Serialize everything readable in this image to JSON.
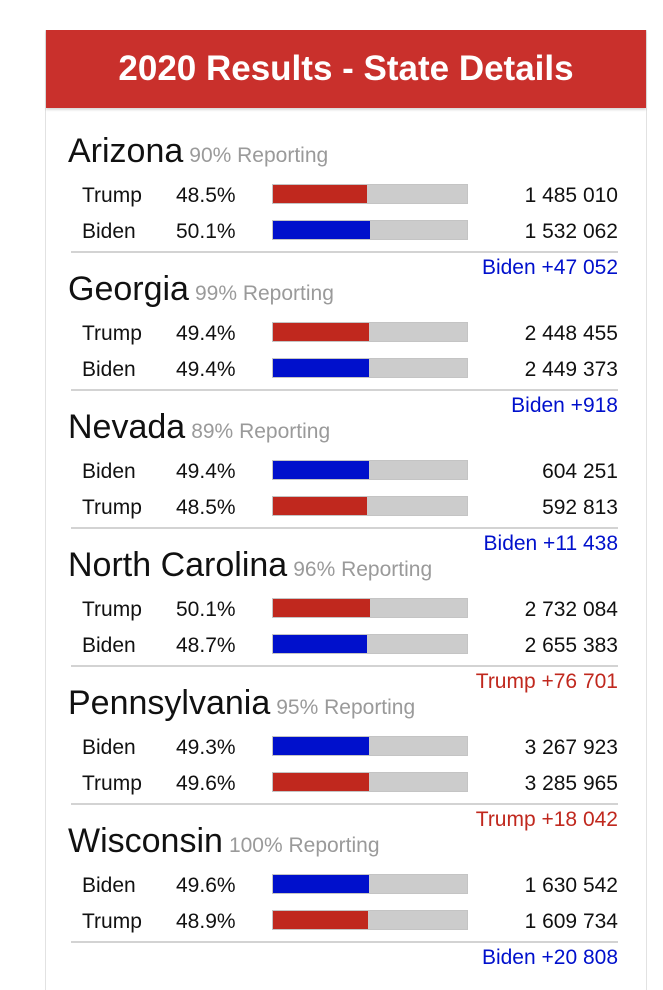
{
  "header": {
    "title": "2020 Results - State Details"
  },
  "colors": {
    "header_bg": "#c9302c",
    "trump": "#c0281e",
    "biden": "#0010cc",
    "track": "#cccccc"
  },
  "states": [
    {
      "name": "Arizona",
      "reporting": "90% Reporting",
      "rows": [
        {
          "cand": "Trump",
          "party": "trump",
          "pct": "48.5%",
          "share": 48.5,
          "votes": "1 485 010"
        },
        {
          "cand": "Biden",
          "party": "biden",
          "pct": "50.1%",
          "share": 50.1,
          "votes": "1 532 062"
        }
      ],
      "margin": "Biden +47 052",
      "margin_party": "biden"
    },
    {
      "name": "Georgia",
      "reporting": "99% Reporting",
      "rows": [
        {
          "cand": "Trump",
          "party": "trump",
          "pct": "49.4%",
          "share": 49.4,
          "votes": "2 448 455"
        },
        {
          "cand": "Biden",
          "party": "biden",
          "pct": "49.4%",
          "share": 49.4,
          "votes": "2 449 373"
        }
      ],
      "margin": "Biden +918",
      "margin_party": "biden"
    },
    {
      "name": "Nevada",
      "reporting": "89% Reporting",
      "rows": [
        {
          "cand": "Biden",
          "party": "biden",
          "pct": "49.4%",
          "share": 49.4,
          "votes": "604 251"
        },
        {
          "cand": "Trump",
          "party": "trump",
          "pct": "48.5%",
          "share": 48.5,
          "votes": "592 813"
        }
      ],
      "margin": "Biden +11 438",
      "margin_party": "biden"
    },
    {
      "name": "North Carolina",
      "reporting": "96% Reporting",
      "rows": [
        {
          "cand": "Trump",
          "party": "trump",
          "pct": "50.1%",
          "share": 50.1,
          "votes": "2 732 084"
        },
        {
          "cand": "Biden",
          "party": "biden",
          "pct": "48.7%",
          "share": 48.7,
          "votes": "2 655 383"
        }
      ],
      "margin": "Trump +76 701",
      "margin_party": "trump"
    },
    {
      "name": "Pennsylvania",
      "reporting": "95% Reporting",
      "rows": [
        {
          "cand": "Biden",
          "party": "biden",
          "pct": "49.3%",
          "share": 49.3,
          "votes": "3 267 923"
        },
        {
          "cand": "Trump",
          "party": "trump",
          "pct": "49.6%",
          "share": 49.6,
          "votes": "3 285 965"
        }
      ],
      "margin": "Trump +18 042",
      "margin_party": "trump"
    },
    {
      "name": "Wisconsin",
      "reporting": "100% Reporting",
      "rows": [
        {
          "cand": "Biden",
          "party": "biden",
          "pct": "49.6%",
          "share": 49.6,
          "votes": "1 630 542"
        },
        {
          "cand": "Trump",
          "party": "trump",
          "pct": "48.9%",
          "share": 48.9,
          "votes": "1 609 734"
        }
      ],
      "margin": "Biden +20 808",
      "margin_party": "biden"
    }
  ]
}
